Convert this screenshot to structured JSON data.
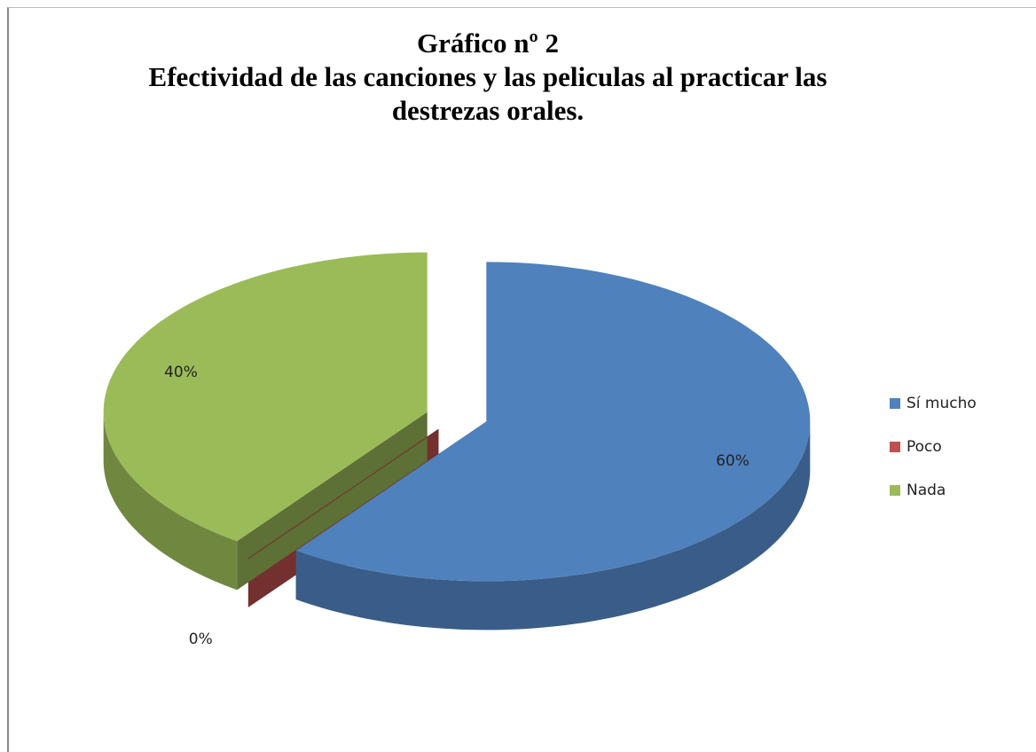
{
  "chart_data": {
    "type": "pie3d",
    "title": "Gráfico nº 2",
    "subtitle": "Efectividad de las canciones y las peliculas al practicar las destrezas orales.",
    "categories": [
      "Sí mucho",
      "Poco",
      "Nada"
    ],
    "values": [
      60,
      0,
      40
    ],
    "value_labels": [
      "60%",
      "0%",
      "40%"
    ],
    "colors": [
      "#4f81bd",
      "#c0504d",
      "#9bbb59"
    ],
    "legend": "right"
  }
}
